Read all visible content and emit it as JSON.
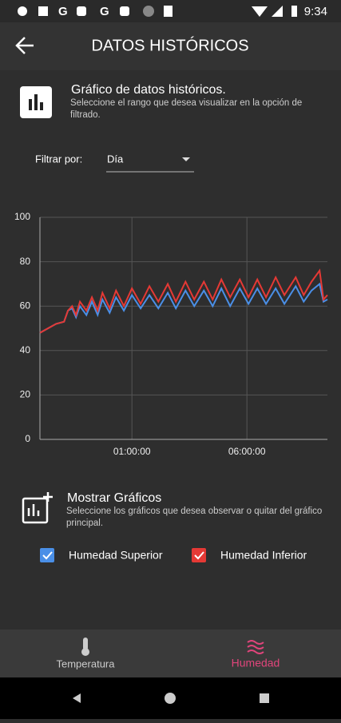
{
  "status_bar": {
    "time": "9:34"
  },
  "header": {
    "title": "DATOS HISTÓRICOS"
  },
  "info": {
    "title": "Gráfico de datos históricos.",
    "subtitle": "Seleccione el rango que desea visualizar en la opción de filtrado."
  },
  "filter": {
    "label": "Filtrar por:",
    "value": "Día"
  },
  "charts_section": {
    "title": "Mostrar Gráficos",
    "subtitle": "Seleccione los gráficos que desea observar o quitar del gráfico principal."
  },
  "nav": {
    "items": [
      "Temperatura",
      "Humedad"
    ]
  },
  "chart_data": {
    "type": "line",
    "x": [
      -3.0,
      -2.65,
      -2.3,
      -1.95,
      -1.78,
      -1.6,
      -1.43,
      -1.26,
      -0.98,
      -0.74,
      -0.49,
      -0.28,
      0.03,
      0.31,
      0.65,
      1.0,
      1.38,
      1.76,
      2.15,
      2.56,
      2.91,
      3.33,
      3.71,
      4.13,
      4.51,
      4.89,
      5.27,
      5.69,
      6.07,
      6.45,
      6.83,
      7.25,
      7.63,
      8.12,
      8.47,
      8.81,
      9.16,
      9.33,
      9.5
    ],
    "xlim": [
      -3.0,
      9.5
    ],
    "xticks": [
      {
        "value": 1,
        "label": "01:00:00"
      },
      {
        "value": 6,
        "label": "06:00:00"
      }
    ],
    "ylim": [
      0,
      100
    ],
    "yticks": [
      0,
      20,
      40,
      60,
      80,
      100
    ],
    "grid": true,
    "series": [
      {
        "name": "Humedad Superior",
        "color": "#4a8fe7",
        "values": [
          48,
          50,
          52,
          53,
          58,
          59,
          55,
          60,
          56,
          62,
          56,
          63,
          57,
          64,
          58,
          65,
          59,
          65,
          59,
          66,
          59,
          67,
          60,
          67,
          60,
          68,
          60,
          68,
          61,
          68,
          61,
          68,
          61,
          69,
          62,
          67,
          70,
          62,
          63
        ]
      },
      {
        "name": "Humedad Inferior",
        "color": "#e53935",
        "values": [
          48,
          50,
          52,
          53,
          58,
          60,
          56,
          62,
          58,
          64,
          58,
          66,
          59,
          67,
          60,
          68,
          61,
          69,
          62,
          70,
          62,
          71,
          63,
          71,
          63,
          72,
          64,
          72,
          64,
          72,
          64,
          73,
          65,
          73,
          65,
          71,
          76,
          63,
          65
        ]
      }
    ]
  }
}
